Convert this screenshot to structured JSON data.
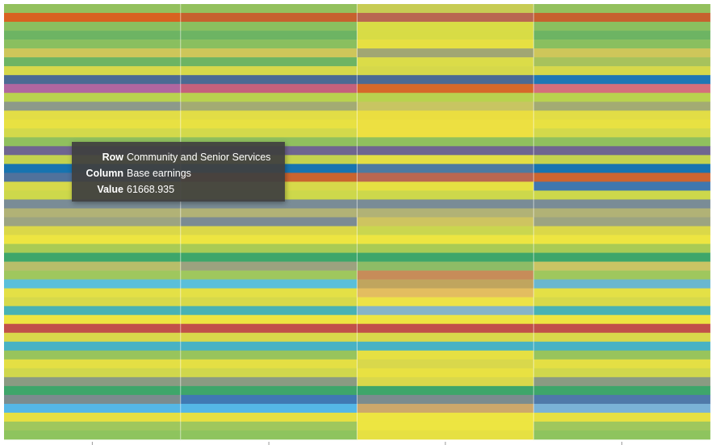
{
  "chart_data": {
    "type": "heatmap",
    "columns": [
      "",
      "Base earnings",
      "",
      ""
    ],
    "rows": [
      "",
      "",
      "",
      "",
      "",
      "",
      "",
      "",
      "",
      "",
      "",
      "",
      "",
      "",
      "",
      "",
      "Community and Senior Services",
      "",
      "",
      "",
      "",
      "",
      "",
      "",
      "",
      "",
      "",
      "",
      "",
      "",
      "",
      "",
      "",
      "",
      "",
      "",
      "",
      "",
      "",
      "",
      "",
      "",
      "",
      "",
      "",
      "",
      "",
      "",
      "",
      ""
    ],
    "cell_colors": [
      [
        "#93c05d",
        "#93c05d",
        "#c7cc54",
        "#93c05d"
      ],
      [
        "#d86220",
        "#c6612e",
        "#b96751",
        "#c6612e"
      ],
      [
        "#8abf5f",
        "#8abf5f",
        "#d8dc45",
        "#8abf5f"
      ],
      [
        "#6db463",
        "#6db463",
        "#d8dc45",
        "#6db463"
      ],
      [
        "#8abf5f",
        "#8abf5f",
        "#e6e042",
        "#8abf5f"
      ],
      [
        "#cec65a",
        "#cec65a",
        "#a1a673",
        "#cec65a"
      ],
      [
        "#6db463",
        "#6db463",
        "#dbdc48",
        "#a7c25c"
      ],
      [
        "#d6d84a",
        "#d6d84a",
        "#d6d84a",
        "#d6d84a"
      ],
      [
        "#4b6a93",
        "#4b6a93",
        "#4b6a93",
        "#1f77b4"
      ],
      [
        "#b066a0",
        "#c5617c",
        "#d6692a",
        "#d56f7b"
      ],
      [
        "#b9d24f",
        "#b9d24f",
        "#b9d24f",
        "#b9d24f"
      ],
      [
        "#8d9a8a",
        "#a3ab73",
        "#c8c562",
        "#a3ab73"
      ],
      [
        "#e2dd46",
        "#e2dd46",
        "#eade40",
        "#e2dd46"
      ],
      [
        "#e8e142",
        "#e8e142",
        "#ede041",
        "#e8e142"
      ],
      [
        "#d3d94b",
        "#d3d94b",
        "#ede041",
        "#d3d94b"
      ],
      [
        "#90c05e",
        "#90c05e",
        "#90c05e",
        "#90c05e"
      ],
      [
        "#6f6590",
        "#6f6590",
        "#6f6590",
        "#6f6590"
      ],
      [
        "#c4d24e",
        "#c4d24e",
        "#e4de43",
        "#c4d24e"
      ],
      [
        "#1774b0",
        "#1774b0",
        "#4d7aa1",
        "#1774b0"
      ],
      [
        "#50729c",
        "#c9642f",
        "#b96751",
        "#cc6531"
      ],
      [
        "#d7d94a",
        "#d7d94a",
        "#e6e042",
        "#3f77af"
      ],
      [
        "#cdd84b",
        "#cdd84b",
        "#cdd84b",
        "#cdd84b"
      ],
      [
        "#7a8c96",
        "#7a8c96",
        "#7a8c96",
        "#7a8c96"
      ],
      [
        "#b1b276",
        "#b1b276",
        "#b1b276",
        "#b1b276"
      ],
      [
        "#9ca481",
        "#7b8b93",
        "#cec460",
        "#9ca481"
      ],
      [
        "#dbd848",
        "#dbd848",
        "#cad64f",
        "#dbd848"
      ],
      [
        "#ede541",
        "#ede541",
        "#ede541",
        "#ede541"
      ],
      [
        "#a9cb55",
        "#a9cb55",
        "#a9cb55",
        "#a9cb55"
      ],
      [
        "#3ea66a",
        "#3ea66a",
        "#3ea66a",
        "#3ea66a"
      ],
      [
        "#b8be6a",
        "#9ca27f",
        "#8ebc66",
        "#cac464"
      ],
      [
        "#9fc75d",
        "#9fc75d",
        "#c78c59",
        "#9fc75d"
      ],
      [
        "#5abfda",
        "#5abfda",
        "#c0a55e",
        "#6ab7cf"
      ],
      [
        "#e4e046",
        "#e4e046",
        "#e3bd60",
        "#e4e046"
      ],
      [
        "#d7d94a",
        "#d7d94a",
        "#ede246",
        "#d7d94a"
      ],
      [
        "#48b2b4",
        "#48b2b4",
        "#86b4c7",
        "#48b2b4"
      ],
      [
        "#ede541",
        "#ede541",
        "#ede541",
        "#ede541"
      ],
      [
        "#c1504a",
        "#c1504a",
        "#c1504a",
        "#c1504a"
      ],
      [
        "#d9d84b",
        "#d9d84b",
        "#d9d84b",
        "#d9d84b"
      ],
      [
        "#48b2c4",
        "#48b2c4",
        "#48b2c4",
        "#48b2c4"
      ],
      [
        "#98c45c",
        "#98c45c",
        "#e6e042",
        "#98c45c"
      ],
      [
        "#e4df44",
        "#e4df44",
        "#d9d84b",
        "#e4df44"
      ],
      [
        "#d0d74c",
        "#d0d74c",
        "#e8e142",
        "#d0d74c"
      ],
      [
        "#8a9b82",
        "#8a9b82",
        "#d9d84b",
        "#8a9b82"
      ],
      [
        "#3ea66a",
        "#3ea66a",
        "#3ea66a",
        "#3ea66a"
      ],
      [
        "#7b8c8e",
        "#4079b3",
        "#7b8c8e",
        "#4f79a9"
      ],
      [
        "#55b7e6",
        "#55b7e6",
        "#cda86b",
        "#7ab2d6"
      ],
      [
        "#e6e042",
        "#e6e042",
        "#ede541",
        "#e6e042"
      ],
      [
        "#9fc75d",
        "#9fc75d",
        "#ede541",
        "#9fc75d"
      ],
      [
        "#8ec45e",
        "#8ec45e",
        "#e6e042",
        "#8ec45e"
      ]
    ],
    "tooltip": {
      "row_label": "Row",
      "row_value": "Community and Senior Services",
      "column_label": "Column",
      "column_value": "Base earnings",
      "value_label": "Value",
      "value": "61668.935"
    },
    "xlabel": "",
    "ylabel": "",
    "grid": true,
    "legend": "none"
  }
}
